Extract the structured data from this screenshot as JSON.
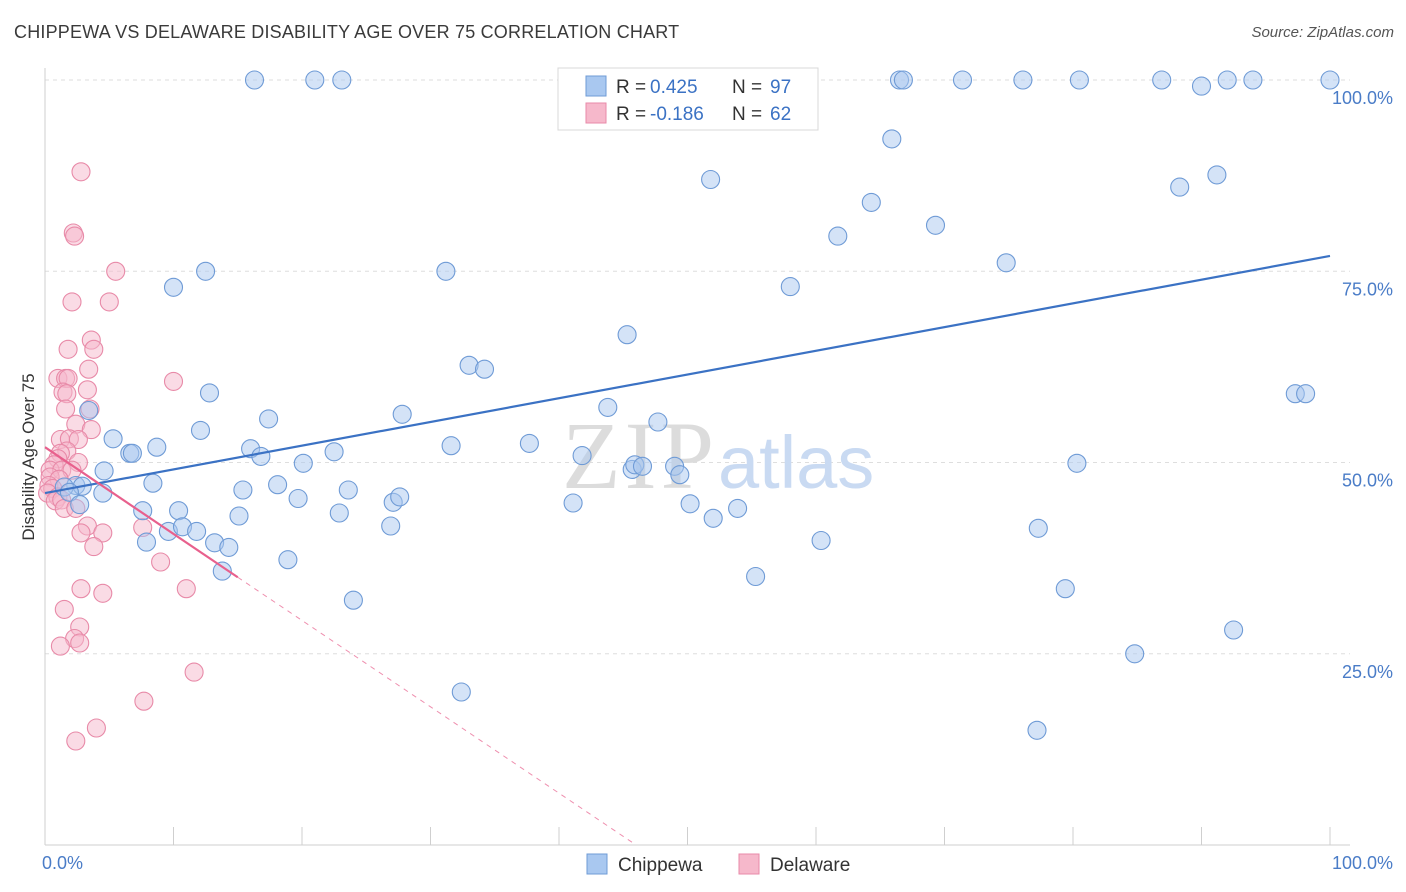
{
  "title": "CHIPPEWA VS DELAWARE DISABILITY AGE OVER 75 CORRELATION CHART",
  "source": "Source: ZipAtlas.com",
  "chart_data": {
    "type": "scatter",
    "xlabel": "",
    "ylabel": "Disability Age Over 75",
    "xlim": [
      0,
      100
    ],
    "ylim": [
      0,
      100
    ],
    "x_tick_labels": [
      "0.0%",
      "100.0%"
    ],
    "y_ticks": [
      {
        "value": 25,
        "label": "25.0%"
      },
      {
        "value": 50,
        "label": "50.0%"
      },
      {
        "value": 75,
        "label": "75.0%"
      },
      {
        "value": 100,
        "label": "100.0%"
      }
    ],
    "watermark": {
      "zip": "ZIP",
      "atlas": "atlas"
    },
    "legend": {
      "r_label": "R =",
      "n_label": "N =",
      "entries": [
        {
          "name": "Chippewa",
          "r": "0.425",
          "n": "97",
          "color": "#a9c8f0",
          "stroke": "#6f9bd6"
        },
        {
          "name": "Delaware",
          "r": "-0.186",
          "n": "62",
          "color": "#f6b8cb",
          "stroke": "#e88aa8"
        }
      ]
    },
    "series": [
      {
        "name": "Chippewa",
        "color": "#a9c8f0",
        "stroke": "#6f9bd6",
        "trend": {
          "x0": 0,
          "y0": 46.0,
          "x1": 100,
          "y1": 77.0,
          "color": "#3b72c4",
          "dashed_extension": false
        },
        "points": [
          [
            16.3,
            100
          ],
          [
            21.0,
            100
          ],
          [
            23.1,
            100
          ],
          [
            66.5,
            100
          ],
          [
            66.8,
            100
          ],
          [
            71.4,
            100
          ],
          [
            76.1,
            100
          ],
          [
            80.5,
            100
          ],
          [
            86.9,
            100
          ],
          [
            90.0,
            99.2
          ],
          [
            92.0,
            100
          ],
          [
            94.0,
            100
          ],
          [
            100,
            100
          ],
          [
            65.9,
            92.3
          ],
          [
            51.8,
            87.0
          ],
          [
            88.3,
            86.0
          ],
          [
            91.2,
            87.6
          ],
          [
            64.3,
            84.0
          ],
          [
            61.7,
            79.6
          ],
          [
            69.3,
            81.0
          ],
          [
            74.8,
            76.1
          ],
          [
            12.5,
            75.0
          ],
          [
            31.2,
            75.0
          ],
          [
            10.0,
            72.9
          ],
          [
            58.0,
            73.0
          ],
          [
            45.3,
            66.7
          ],
          [
            33.0,
            62.7
          ],
          [
            34.2,
            62.2
          ],
          [
            97.3,
            59.0
          ],
          [
            98.1,
            59.0
          ],
          [
            12.8,
            59.1
          ],
          [
            3.4,
            56.8
          ],
          [
            17.4,
            55.7
          ],
          [
            27.8,
            56.3
          ],
          [
            43.8,
            57.2
          ],
          [
            47.7,
            55.3
          ],
          [
            12.1,
            54.2
          ],
          [
            5.3,
            53.1
          ],
          [
            8.7,
            52.0
          ],
          [
            16.0,
            51.8
          ],
          [
            22.5,
            51.4
          ],
          [
            31.6,
            52.2
          ],
          [
            37.7,
            52.5
          ],
          [
            6.6,
            51.2
          ],
          [
            6.8,
            51.2
          ],
          [
            16.8,
            50.8
          ],
          [
            20.1,
            49.9
          ],
          [
            41.8,
            50.9
          ],
          [
            45.7,
            49.1
          ],
          [
            45.9,
            49.7
          ],
          [
            46.5,
            49.5
          ],
          [
            49.0,
            49.5
          ],
          [
            49.4,
            48.4
          ],
          [
            80.3,
            49.9
          ],
          [
            4.6,
            48.9
          ],
          [
            8.4,
            47.3
          ],
          [
            2.4,
            47.0
          ],
          [
            2.9,
            46.9
          ],
          [
            18.1,
            47.1
          ],
          [
            15.4,
            46.4
          ],
          [
            23.6,
            46.4
          ],
          [
            1.5,
            46.8
          ],
          [
            1.9,
            46.1
          ],
          [
            4.5,
            46.0
          ],
          [
            19.7,
            45.3
          ],
          [
            27.1,
            44.8
          ],
          [
            27.6,
            45.5
          ],
          [
            41.1,
            44.7
          ],
          [
            50.2,
            44.6
          ],
          [
            2.7,
            44.5
          ],
          [
            7.6,
            43.7
          ],
          [
            10.4,
            43.7
          ],
          [
            15.1,
            43.0
          ],
          [
            22.9,
            43.4
          ],
          [
            52.0,
            42.7
          ],
          [
            53.9,
            44.0
          ],
          [
            9.6,
            41.0
          ],
          [
            10.7,
            41.6
          ],
          [
            11.8,
            41.0
          ],
          [
            26.9,
            41.7
          ],
          [
            77.3,
            41.4
          ],
          [
            7.9,
            39.6
          ],
          [
            13.2,
            39.5
          ],
          [
            14.3,
            38.9
          ],
          [
            60.4,
            39.8
          ],
          [
            18.9,
            37.3
          ],
          [
            13.8,
            35.8
          ],
          [
            55.3,
            35.1
          ],
          [
            79.4,
            33.5
          ],
          [
            24.0,
            32.0
          ],
          [
            92.5,
            28.1
          ],
          [
            84.8,
            25.0
          ],
          [
            32.4,
            20.0
          ],
          [
            77.2,
            15.0
          ]
        ]
      },
      {
        "name": "Delaware",
        "color": "#f6b8cb",
        "stroke": "#e88aa8",
        "trend": {
          "x0": 0,
          "y0": 52.0,
          "x1": 15.0,
          "y1": 35.0,
          "color": "#e8608d",
          "dashed_extension": true,
          "dash_to_x": 46.0,
          "dash_to_y": 0
        },
        "points": [
          [
            2.8,
            88.0
          ],
          [
            2.2,
            80.0
          ],
          [
            2.3,
            79.6
          ],
          [
            5.5,
            75.0
          ],
          [
            2.1,
            71.0
          ],
          [
            5.0,
            71.0
          ],
          [
            3.6,
            66.0
          ],
          [
            3.8,
            64.8
          ],
          [
            1.8,
            64.8
          ],
          [
            3.4,
            62.2
          ],
          [
            1.0,
            61.0
          ],
          [
            1.6,
            61.0
          ],
          [
            1.8,
            61.0
          ],
          [
            10.0,
            60.6
          ],
          [
            3.3,
            59.5
          ],
          [
            1.4,
            59.2
          ],
          [
            1.7,
            59.0
          ],
          [
            3.5,
            57.0
          ],
          [
            1.6,
            57.0
          ],
          [
            2.4,
            55.0
          ],
          [
            3.6,
            54.3
          ],
          [
            1.2,
            53.0
          ],
          [
            1.9,
            53.1
          ],
          [
            2.6,
            53.0
          ],
          [
            1.7,
            51.5
          ],
          [
            1.2,
            51.2
          ],
          [
            1.0,
            50.5
          ],
          [
            2.6,
            50.0
          ],
          [
            0.7,
            49.7
          ],
          [
            0.4,
            49.0
          ],
          [
            1.3,
            49.0
          ],
          [
            2.1,
            49.0
          ],
          [
            0.4,
            48.1
          ],
          [
            1.1,
            47.8
          ],
          [
            0.3,
            47.0
          ],
          [
            0.6,
            46.6
          ],
          [
            0.2,
            46.0
          ],
          [
            1.0,
            45.5
          ],
          [
            0.8,
            45.0
          ],
          [
            1.3,
            45.1
          ],
          [
            1.5,
            44.0
          ],
          [
            2.4,
            44.0
          ],
          [
            3.3,
            41.7
          ],
          [
            2.8,
            40.8
          ],
          [
            4.5,
            40.8
          ],
          [
            7.6,
            41.5
          ],
          [
            3.8,
            39.0
          ],
          [
            9.0,
            37.0
          ],
          [
            2.8,
            33.5
          ],
          [
            11.0,
            33.5
          ],
          [
            4.5,
            32.9
          ],
          [
            1.5,
            30.8
          ],
          [
            2.7,
            28.5
          ],
          [
            2.3,
            27.0
          ],
          [
            2.7,
            26.4
          ],
          [
            1.2,
            26.0
          ],
          [
            11.6,
            22.6
          ],
          [
            7.7,
            18.8
          ],
          [
            4.0,
            15.3
          ],
          [
            2.4,
            13.6
          ]
        ]
      }
    ]
  }
}
